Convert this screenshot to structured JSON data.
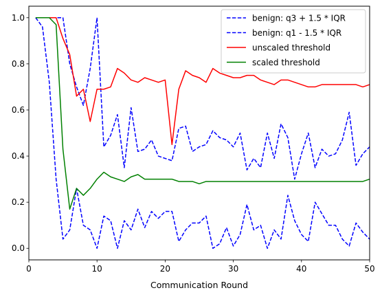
{
  "chart_data": {
    "type": "line",
    "xlabel": "Communication Round",
    "ylabel": "",
    "xlim": [
      0,
      50
    ],
    "ylim": [
      -0.05,
      1.05
    ],
    "xticks": [
      0,
      10,
      20,
      30,
      40,
      50
    ],
    "yticks": [
      0.0,
      0.2,
      0.4,
      0.6,
      0.8,
      1.0
    ],
    "xtick_labels": [
      "0",
      "10",
      "20",
      "30",
      "40",
      "50"
    ],
    "ytick_labels": [
      "0.0",
      "0.2",
      "0.4",
      "0.6",
      "0.8",
      "1.0"
    ],
    "grid": false,
    "legend_position": "top-right",
    "x": [
      1,
      2,
      3,
      4,
      5,
      6,
      7,
      8,
      9,
      10,
      11,
      12,
      13,
      14,
      15,
      16,
      17,
      18,
      19,
      20,
      21,
      22,
      23,
      24,
      25,
      26,
      27,
      28,
      29,
      30,
      31,
      32,
      33,
      34,
      35,
      36,
      37,
      38,
      39,
      40,
      41,
      42,
      43,
      44,
      45,
      46,
      47,
      48,
      49,
      50
    ],
    "series": [
      {
        "name": "benign: q3 + 1.5 * IQR",
        "color": "#0000ff",
        "style": "dashed",
        "values": [
          1.0,
          0.96,
          0.72,
          0.3,
          0.04,
          0.08,
          0.26,
          0.1,
          0.08,
          0.0,
          0.14,
          0.12,
          0.0,
          0.12,
          0.08,
          0.17,
          0.09,
          0.16,
          0.13,
          0.16,
          0.16,
          0.03,
          0.08,
          0.11,
          0.11,
          0.14,
          0.0,
          0.02,
          0.09,
          0.01,
          0.06,
          0.19,
          0.08,
          0.1,
          0.0,
          0.08,
          0.04,
          0.23,
          0.12,
          0.06,
          0.03,
          0.2,
          0.15,
          0.1,
          0.1,
          0.04,
          0.01,
          0.11,
          0.07,
          0.04
        ]
      },
      {
        "name": "benign: q1 - 1.5 * IQR",
        "color": "#0000ff",
        "style": "dashed",
        "values": [
          1.0,
          1.0,
          1.0,
          1.0,
          1.0,
          0.8,
          0.7,
          0.62,
          0.78,
          1.0,
          0.44,
          0.49,
          0.58,
          0.35,
          0.61,
          0.42,
          0.43,
          0.47,
          0.4,
          0.39,
          0.38,
          0.52,
          0.53,
          0.42,
          0.44,
          0.45,
          0.51,
          0.48,
          0.47,
          0.44,
          0.5,
          0.34,
          0.39,
          0.35,
          0.5,
          0.39,
          0.54,
          0.48,
          0.3,
          0.41,
          0.5,
          0.35,
          0.43,
          0.4,
          0.41,
          0.47,
          0.59,
          0.36,
          0.41,
          0.44
        ]
      },
      {
        "name": "unscaled threshold",
        "color": "#ff0000",
        "style": "solid",
        "values": [
          1.0,
          1.0,
          1.0,
          1.0,
          0.91,
          0.84,
          0.66,
          0.69,
          0.55,
          0.69,
          0.69,
          0.7,
          0.78,
          0.76,
          0.73,
          0.72,
          0.74,
          0.73,
          0.72,
          0.73,
          0.45,
          0.69,
          0.77,
          0.75,
          0.74,
          0.72,
          0.78,
          0.76,
          0.75,
          0.74,
          0.74,
          0.75,
          0.75,
          0.73,
          0.72,
          0.71,
          0.73,
          0.73,
          0.72,
          0.71,
          0.7,
          0.7,
          0.71,
          0.71,
          0.71,
          0.71,
          0.71,
          0.71,
          0.7,
          0.71
        ]
      },
      {
        "name": "scaled threshold",
        "color": "#008000",
        "style": "solid",
        "values": [
          1.0,
          1.0,
          1.0,
          0.97,
          0.43,
          0.17,
          0.26,
          0.23,
          0.26,
          0.3,
          0.33,
          0.31,
          0.3,
          0.29,
          0.31,
          0.32,
          0.3,
          0.3,
          0.3,
          0.3,
          0.3,
          0.29,
          0.29,
          0.29,
          0.28,
          0.29,
          0.29,
          0.29,
          0.29,
          0.29,
          0.29,
          0.29,
          0.29,
          0.29,
          0.29,
          0.29,
          0.29,
          0.29,
          0.29,
          0.29,
          0.29,
          0.29,
          0.29,
          0.29,
          0.29,
          0.29,
          0.29,
          0.29,
          0.29,
          0.3
        ]
      }
    ]
  }
}
